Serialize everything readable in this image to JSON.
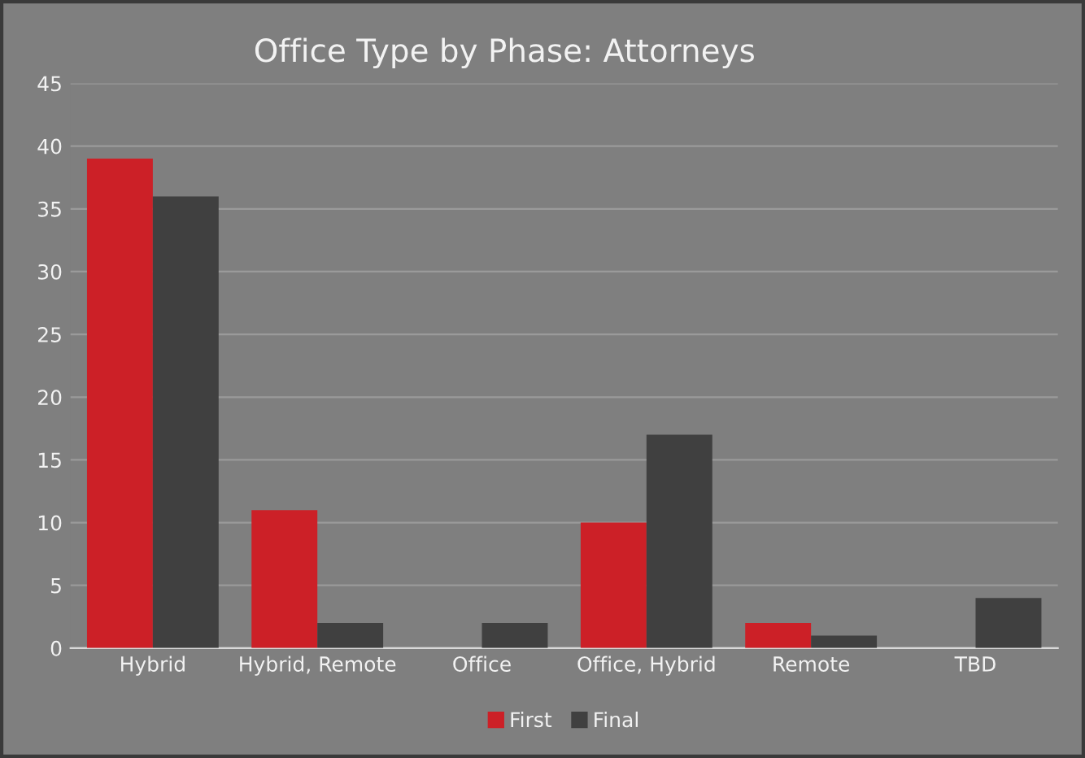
{
  "chart_data": {
    "type": "bar",
    "title": "Office Type by Phase: Attorneys",
    "categories": [
      "Hybrid",
      "Hybrid, Remote",
      "Office",
      "Office, Hybrid",
      "Remote",
      "TBD"
    ],
    "series": [
      {
        "name": "First",
        "color": "#cc2027",
        "values": [
          39,
          11,
          null,
          10,
          2,
          null
        ]
      },
      {
        "name": "Final",
        "color": "#404040",
        "values": [
          36,
          2,
          2,
          17,
          1,
          4
        ]
      }
    ],
    "ylim": [
      0,
      45
    ],
    "yticks": [
      0,
      5,
      10,
      15,
      20,
      25,
      30,
      35,
      40,
      45
    ],
    "grid": "y",
    "legend": "bottom"
  }
}
